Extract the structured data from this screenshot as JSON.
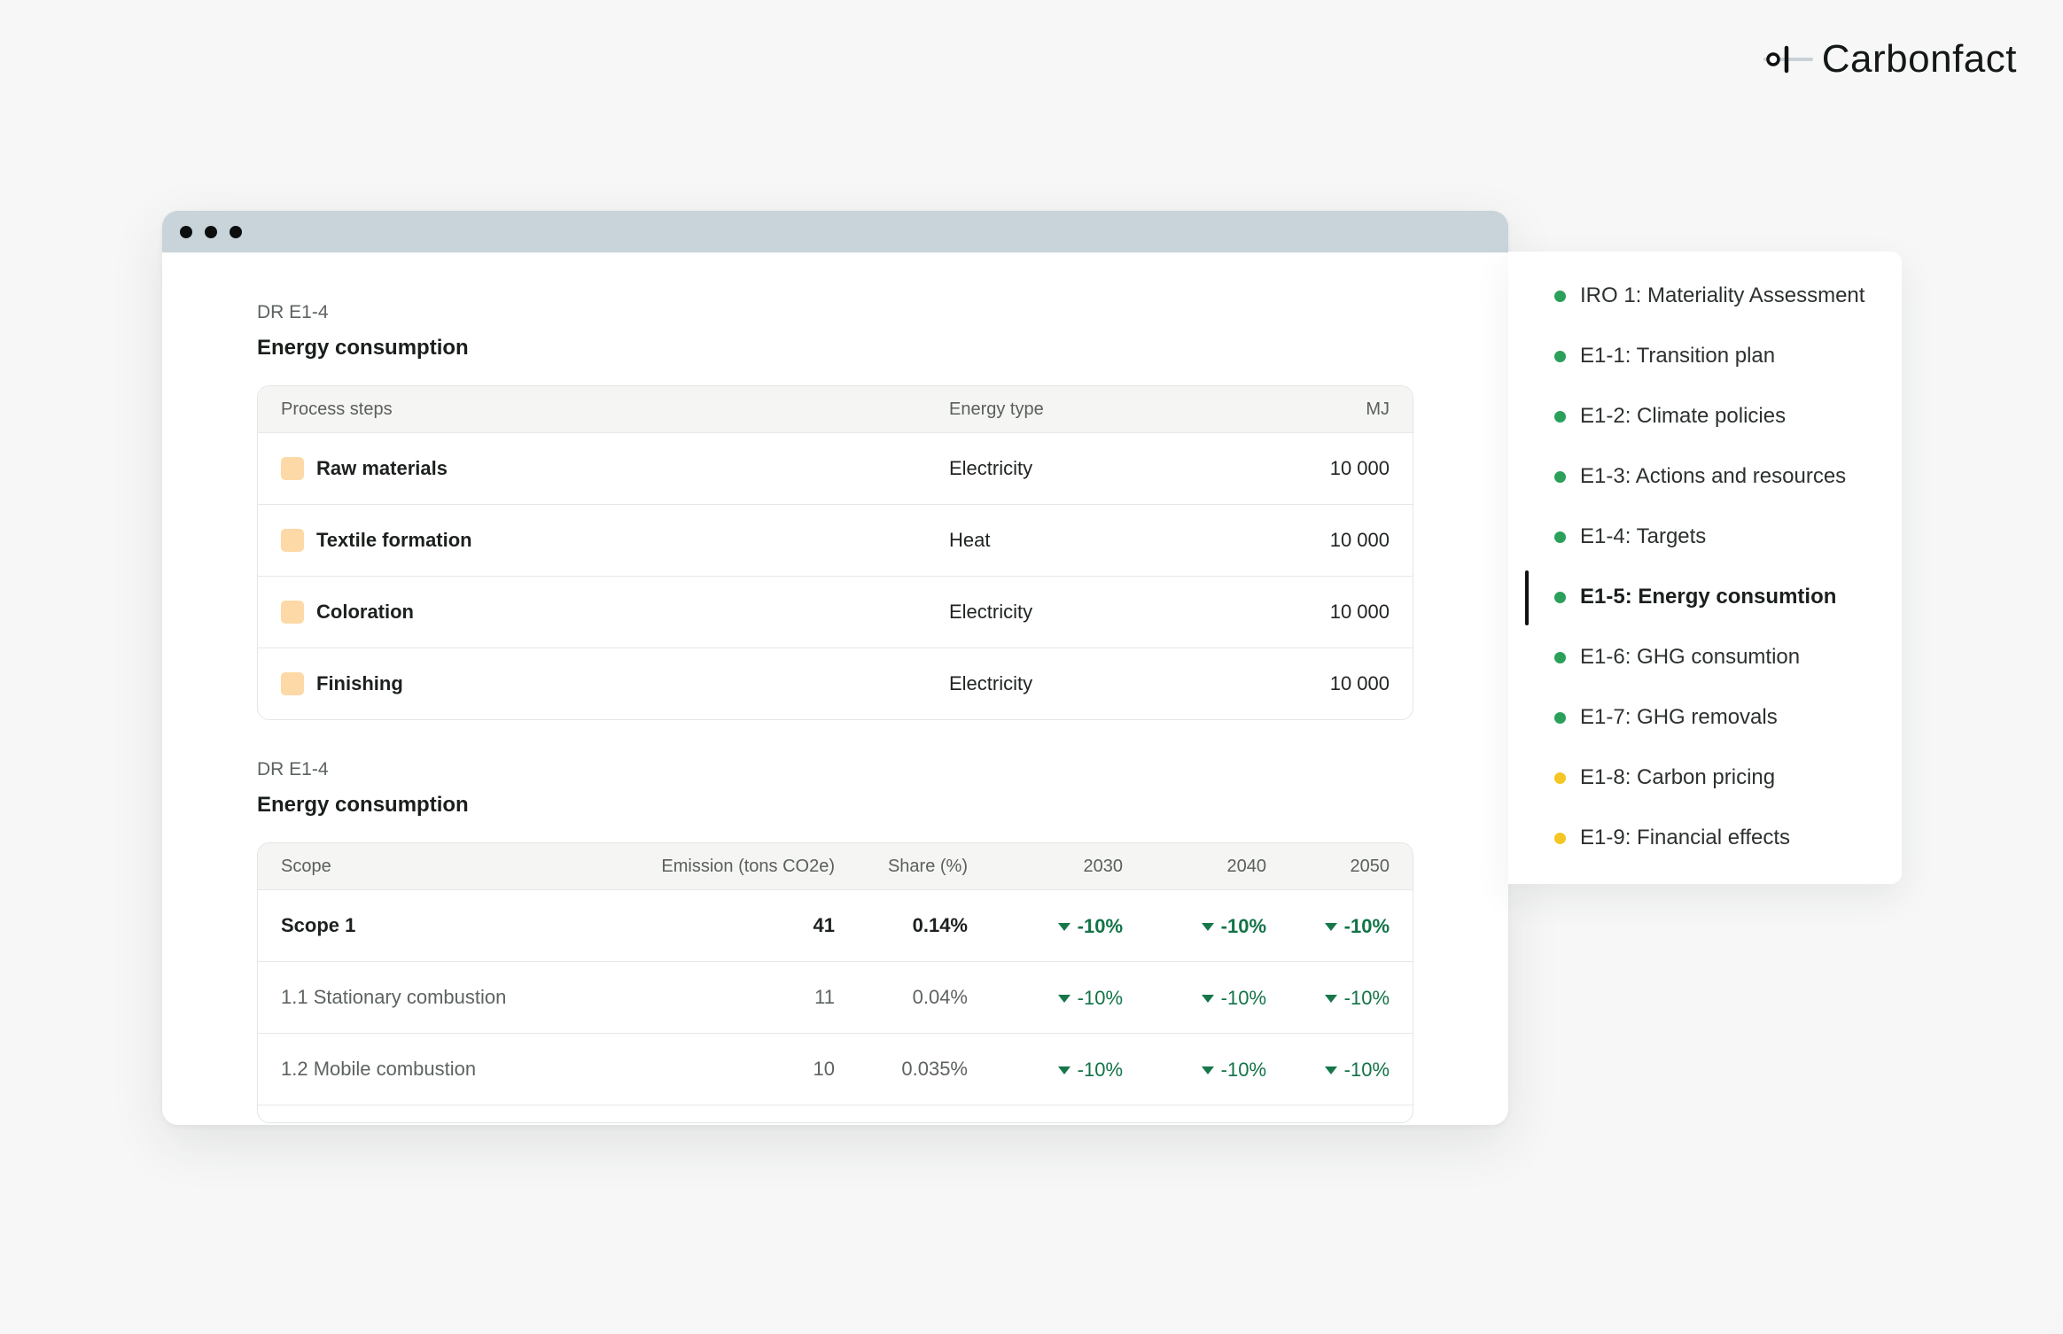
{
  "brand": {
    "name": "Carbonfact"
  },
  "colors": {
    "accent_green": "#127346",
    "status_done": "#2aa05a",
    "status_pending": "#f3c623",
    "swatch": "#fcd9a6"
  },
  "energy_table": {
    "eyebrow": "DR E1-4",
    "title": "Energy consumption",
    "headers": [
      "Process steps",
      "Energy type",
      "MJ"
    ],
    "rows": [
      {
        "step": "Raw materials",
        "type": "Electricity",
        "mj": "10 000"
      },
      {
        "step": "Textile formation",
        "type": "Heat",
        "mj": "10 000"
      },
      {
        "step": "Coloration",
        "type": "Electricity",
        "mj": "10 000"
      },
      {
        "step": "Finishing",
        "type": "Electricity",
        "mj": "10 000"
      }
    ]
  },
  "emission_table": {
    "eyebrow": "DR E1-4",
    "title": "Energy consumption",
    "headers": [
      "Scope",
      "Emission (tons CO2e)",
      "Share (%)",
      "2030",
      "2040",
      "2050"
    ],
    "rows": [
      {
        "scope": "Scope 1",
        "emission": "41",
        "share": "0.14%",
        "y2030": "-10%",
        "y2040": "-10%",
        "y2050": "-10%",
        "bold": true
      },
      {
        "scope": "1.1 Stationary combustion",
        "emission": "11",
        "share": "0.04%",
        "y2030": "-10%",
        "y2040": "-10%",
        "y2050": "-10%",
        "bold": false
      },
      {
        "scope": "1.2 Mobile combustion",
        "emission": "10",
        "share": "0.035%",
        "y2030": "-10%",
        "y2040": "-10%",
        "y2050": "-10%",
        "bold": false
      }
    ]
  },
  "sidenav": {
    "items": [
      {
        "label": "IRO 1: Materiality Assessment",
        "status": "done"
      },
      {
        "label": "E1-1: Transition plan",
        "status": "done"
      },
      {
        "label": "E1-2: Climate policies",
        "status": "done"
      },
      {
        "label": "E1-3: Actions and resources",
        "status": "done"
      },
      {
        "label": "E1-4: Targets",
        "status": "done"
      },
      {
        "label": "E1-5: Energy consumtion",
        "status": "done",
        "active": true
      },
      {
        "label": "E1-6: GHG consumtion",
        "status": "done"
      },
      {
        "label": "E1-7: GHG removals",
        "status": "done"
      },
      {
        "label": "E1-8: Carbon pricing",
        "status": "pending"
      },
      {
        "label": "E1-9: Financial effects",
        "status": "pending"
      }
    ]
  }
}
